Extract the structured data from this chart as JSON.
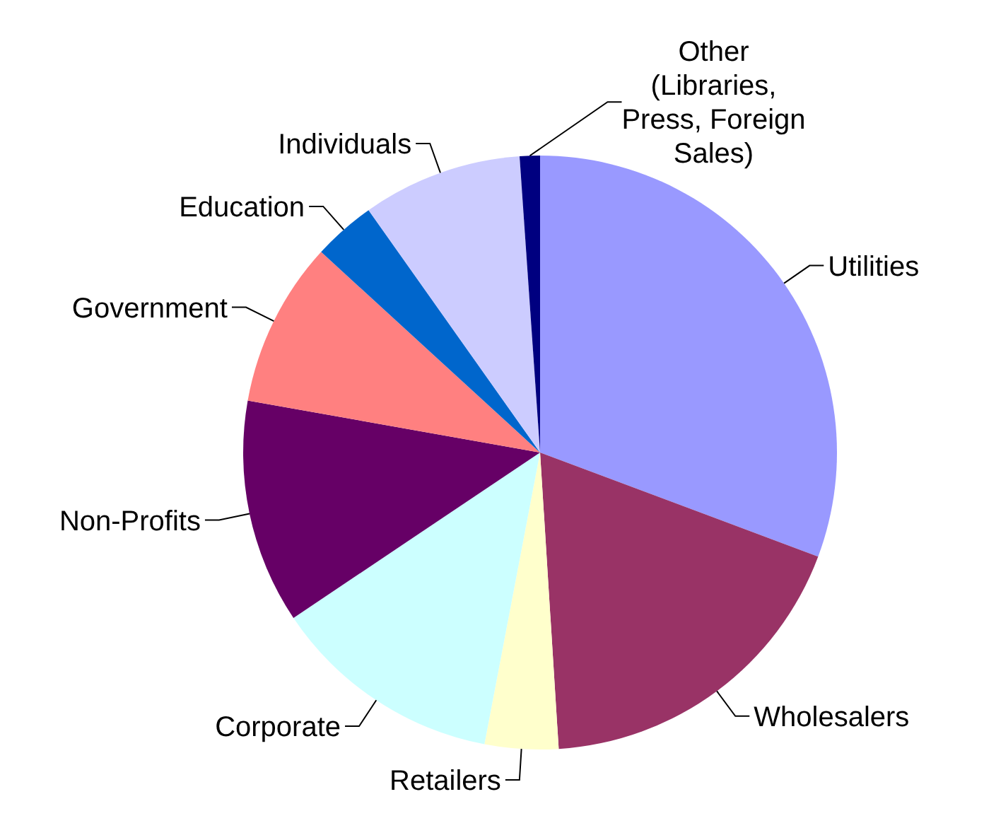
{
  "chart_data": {
    "type": "pie",
    "categories": [
      "Utilities",
      "Wholesalers",
      "Retailers",
      "Corporate",
      "Non-Profits",
      "Government",
      "Education",
      "Individuals",
      "Other (Libraries, Press, Foreign Sales)"
    ],
    "values": [
      30.7,
      18.3,
      4.0,
      12.6,
      12.2,
      9.0,
      3.4,
      8.7,
      1.1
    ],
    "colors": [
      "#9999ff",
      "#993366",
      "#ffffcc",
      "#ccffff",
      "#660066",
      "#ff8080",
      "#0066cc",
      "#ccccff",
      "#000080"
    ],
    "legend": false
  }
}
